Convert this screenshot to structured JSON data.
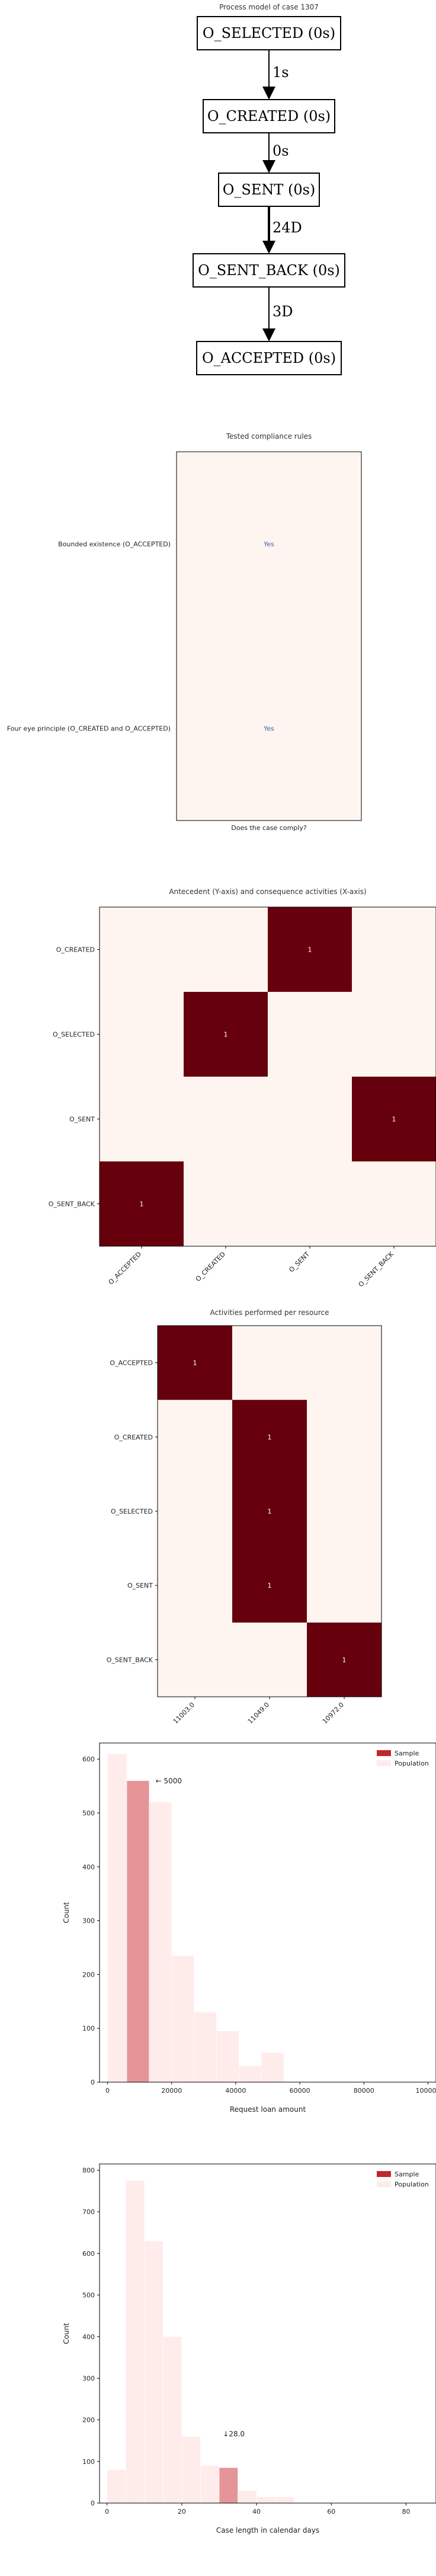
{
  "chart_data": [
    {
      "type": "diagram",
      "title": "Process model of case 1307",
      "nodes": [
        "O_SELECTED (0s)",
        "O_CREATED (0s)",
        "O_SENT (0s)",
        "O_SENT_BACK (0s)",
        "O_ACCEPTED (0s)"
      ],
      "edges": [
        {
          "from": 0,
          "to": 1,
          "label": "1s",
          "weight": 1
        },
        {
          "from": 1,
          "to": 2,
          "label": "0s",
          "weight": 1
        },
        {
          "from": 2,
          "to": 3,
          "label": "24D",
          "weight": 2
        },
        {
          "from": 3,
          "to": 4,
          "label": "3D",
          "weight": 1
        }
      ]
    },
    {
      "type": "table",
      "title": "Tested compliance rules",
      "xlabel": "Does the case comply?",
      "rows": [
        "Bounded existence (O_ACCEPTED)",
        "Four eye principle (O_CREATED and O_ACCEPTED)"
      ],
      "values": [
        "Yes",
        "Yes"
      ],
      "colors": {
        "cell": "#fff5f0",
        "text": "#3b5fa8"
      }
    },
    {
      "type": "heatmap",
      "title": "Antecedent (Y-axis) and consequence activities (X-axis)",
      "rows": [
        "O_CREATED",
        "O_SELECTED",
        "O_SENT",
        "O_SENT_BACK"
      ],
      "cols": [
        "O_ACCEPTED",
        "O_CREATED",
        "O_SENT",
        "O_SENT_BACK"
      ],
      "values": [
        [
          0,
          0,
          1,
          0
        ],
        [
          0,
          1,
          0,
          0
        ],
        [
          0,
          0,
          0,
          1
        ],
        [
          1,
          0,
          0,
          0
        ]
      ],
      "colors": {
        "high": "#67000d",
        "low": "#fff5f0"
      }
    },
    {
      "type": "heatmap",
      "title": "Activities performed per resource",
      "rows": [
        "O_ACCEPTED",
        "O_CREATED",
        "O_SELECTED",
        "O_SENT",
        "O_SENT_BACK"
      ],
      "cols": [
        "11003.0",
        "11049.0",
        "10972.0"
      ],
      "values": [
        [
          1,
          0,
          0
        ],
        [
          0,
          1,
          0
        ],
        [
          0,
          1,
          0
        ],
        [
          0,
          1,
          0
        ],
        [
          0,
          0,
          1
        ]
      ],
      "colors": {
        "high": "#67000d",
        "low": "#fff5f0"
      }
    },
    {
      "type": "bar",
      "xlabel": "Request loan amount",
      "ylabel": "Count",
      "xlim": [
        -2500,
        102500
      ],
      "ylim": [
        0,
        630
      ],
      "xticks": [
        0,
        20000,
        40000,
        60000,
        80000,
        100000
      ],
      "yticks": [
        0,
        100,
        200,
        300,
        400,
        500,
        600
      ],
      "legend": "top-right",
      "series": [
        {
          "name": "Sample",
          "color": "#c0272d",
          "bins": [
            [
              6000,
              13000,
              560
            ]
          ]
        },
        {
          "name": "Population",
          "color": "#fde0dd",
          "bins": [
            [
              0,
              6000,
              610
            ],
            [
              6000,
              13000,
              560
            ],
            [
              13000,
              20000,
              520
            ],
            [
              20000,
              27000,
              235
            ],
            [
              27000,
              34000,
              130
            ],
            [
              34000,
              41000,
              95
            ],
            [
              41000,
              48000,
              30
            ],
            [
              48000,
              55000,
              55
            ]
          ]
        }
      ],
      "annotation": {
        "text": "← 5000",
        "x": 15000,
        "y": 555
      }
    },
    {
      "type": "bar",
      "xlabel": "Case length in calendar days",
      "ylabel": "Count",
      "xlim": [
        -2,
        88
      ],
      "ylim": [
        0,
        815
      ],
      "xticks": [
        0,
        20,
        40,
        60,
        80
      ],
      "yticks": [
        0,
        100,
        200,
        300,
        400,
        500,
        600,
        700,
        800
      ],
      "legend": "top-right",
      "series": [
        {
          "name": "Sample",
          "color": "#c0272d",
          "bins": [
            [
              30,
              35,
              85
            ]
          ]
        },
        {
          "name": "Population",
          "color": "#fde0dd",
          "bins": [
            [
              0,
              5,
              80
            ],
            [
              5,
              10,
              775
            ],
            [
              10,
              15,
              630
            ],
            [
              15,
              20,
              400
            ],
            [
              20,
              25,
              160
            ],
            [
              25,
              30,
              90
            ],
            [
              30,
              35,
              85
            ],
            [
              35,
              40,
              30
            ],
            [
              40,
              45,
              15
            ],
            [
              45,
              50,
              15
            ]
          ]
        }
      ],
      "annotation": {
        "text": "↓28.0",
        "x": 31,
        "y": 160
      }
    }
  ]
}
